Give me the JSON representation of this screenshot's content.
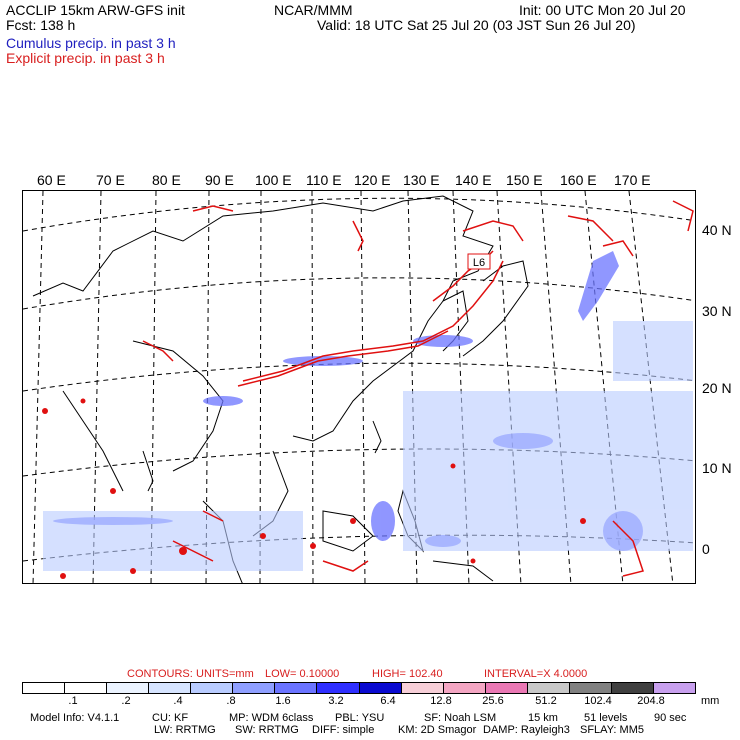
{
  "header": {
    "title_left": "ACCLIP 15km ARW-GFS init",
    "fcst": "Fcst:   138 h",
    "center": "NCAR/MMM",
    "init": "Init: 00 UTC Mon 20 Jul 20",
    "valid": "Valid: 18 UTC Sat 25 Jul 20 (03 JST Sun 26 Jul 20)",
    "legend_cumulus": "Cumulus precip. in past 3 h",
    "legend_explicit": "Explicit precip. in past 3 h"
  },
  "map": {
    "lon_labels": [
      "60 E",
      "70 E",
      "80 E",
      "90 E",
      "100 E",
      "110 E",
      "120 E",
      "130 E",
      "140 E",
      "150 E",
      "160 E",
      "170 E"
    ],
    "lat_labels": [
      "40 N",
      "30 N",
      "20 N",
      "10 N",
      "0"
    ],
    "low_label": "L6"
  },
  "contours": {
    "prefix": "CONTOURS:",
    "units": "UNITS=mm",
    "low": "LOW=  0.10000",
    "high": "HIGH=   102.40",
    "interval": "INTERVAL=X   4.0000"
  },
  "colorbar": {
    "colors": [
      "#ffffff",
      "#ffffff",
      "#ebf3ff",
      "#d6e4ff",
      "#b9ccff",
      "#8f9fff",
      "#6b74ff",
      "#2f2fff",
      "#0a0ad0",
      "#f7cfd8",
      "#f4a6c3",
      "#ea78b4",
      "#c8c8c8",
      "#808080",
      "#404040",
      "#c8a0ee"
    ],
    "ticks": [
      ".1",
      ".2",
      ".4",
      ".8",
      "1.6",
      "3.2",
      "6.4",
      "12.8",
      "25.6",
      "51.2",
      "102.4",
      "204.8"
    ],
    "unit": "mm"
  },
  "footer": {
    "line1": [
      "Model Info: V4.1.1",
      "CU: KF",
      "MP: WDM 6class",
      "PBL: YSU",
      "SF: Noah LSM",
      "15 km",
      "51 levels",
      "90 sec"
    ],
    "line2": [
      "LW: RRTMG",
      "SW: RRTMG",
      "DIFF: simple",
      "KM: 2D Smagor",
      "DAMP: Rayleigh3",
      "SFLAY: MM5"
    ]
  }
}
